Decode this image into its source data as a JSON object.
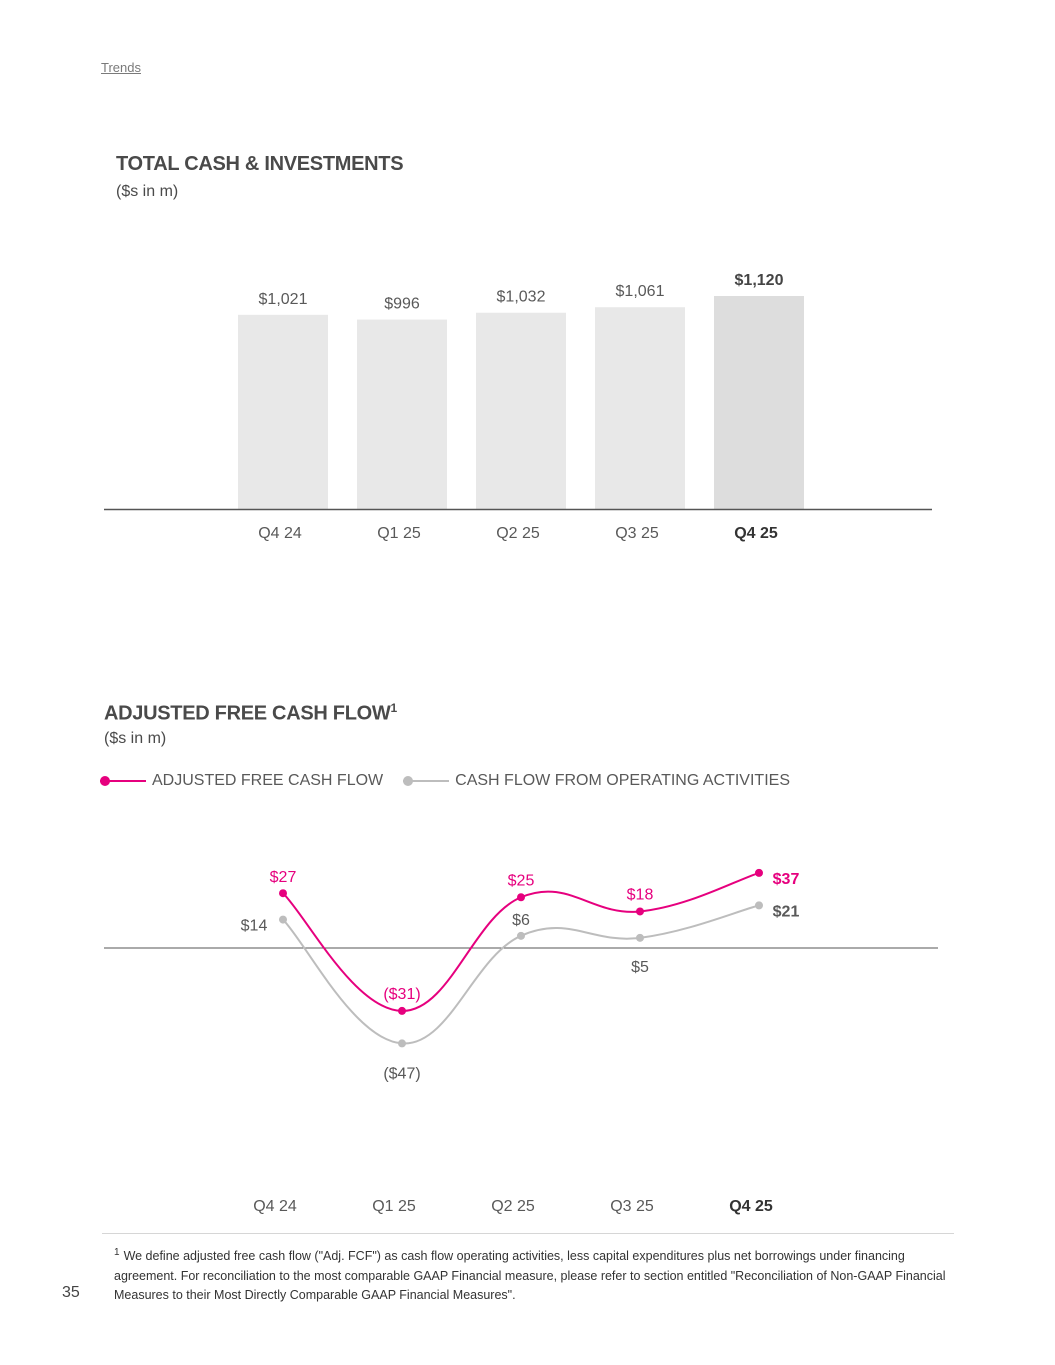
{
  "breadcrumb": "Trends",
  "page_number": "35",
  "colors": {
    "pink": "#e6007e",
    "gray_line": "#bdbdbd",
    "bar": "#e8e8e8",
    "bar_highlight": "#dddddd",
    "axis": "#555555"
  },
  "footnote": {
    "marker": "1",
    "text": "We define adjusted free cash flow (\"Adj. FCF\") as cash flow operating activities, less capital expenditures plus net borrowings under financing agreement. For reconciliation to the most comparable GAAP Financial measure, please refer to section entitled \"Reconciliation of Non-GAAP Financial Measures to their Most Directly Comparable GAAP Financial Measures\"."
  },
  "chart_data": [
    {
      "type": "bar",
      "title": "TOTAL CASH & INVESTMENTS",
      "subtitle": "($s in m)",
      "categories": [
        "Q4 24",
        "Q1 25",
        "Q2 25",
        "Q3 25",
        "Q4 25"
      ],
      "values": [
        1021,
        996,
        1032,
        1061,
        1120
      ],
      "labels": [
        "$1,021",
        "$996",
        "$1,032",
        "$1,061",
        "$1,120"
      ],
      "highlight_index": 4,
      "ylim": [
        0,
        1200
      ],
      "grid": false
    },
    {
      "type": "line",
      "title": "ADJUSTED FREE CASH FLOW",
      "title_superscript": "1",
      "subtitle": "($s in m)",
      "legend_position": "top-left",
      "categories": [
        "Q4 24",
        "Q1 25",
        "Q2 25",
        "Q3 25",
        "Q4 25"
      ],
      "highlight_index": 4,
      "ylim": [
        -60,
        45
      ],
      "grid": false,
      "series": [
        {
          "name": "ADJUSTED FREE CASH FLOW",
          "color": "#e6007e",
          "values": [
            27,
            -31,
            25,
            18,
            37
          ],
          "labels": [
            "$27",
            "($31)",
            "$25",
            "$18",
            "$37"
          ]
        },
        {
          "name": "CASH FLOW FROM OPERATING ACTIVITIES",
          "color": "#bdbdbd",
          "values": [
            14,
            -47,
            6,
            5,
            21
          ],
          "labels": [
            "$14",
            "($47)",
            "$6",
            "$5",
            "$21"
          ]
        }
      ]
    }
  ]
}
